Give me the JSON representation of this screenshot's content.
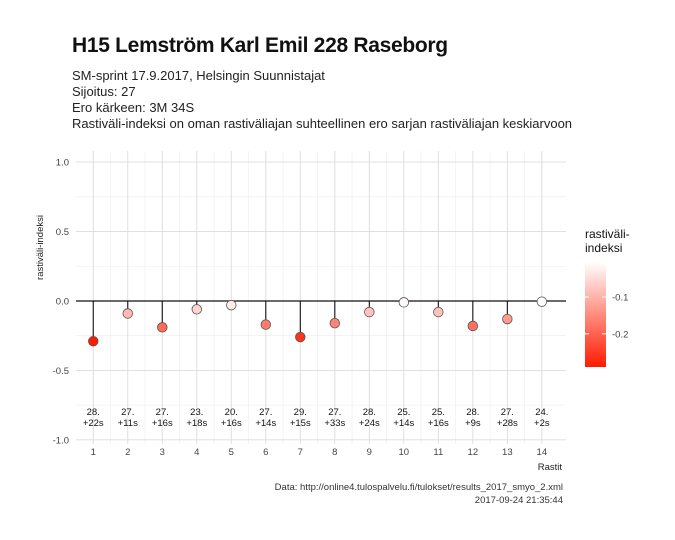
{
  "title": "H15 Lemström Karl Emil 228 Raseborg",
  "subtitle_lines": [
    "SM-sprint 17.9.2017, Helsingin Suunnistajat",
    "Sijoitus: 27",
    "Ero kärkeen: 3M 34S",
    "Rastiväli-indeksi on oman rastiväliajan suhteellinen ero sarjan rastiväliajan keskiarvoon"
  ],
  "caption": {
    "source": "Data: http://online4.tulospalvelu.fi/tulokset/results_2017_smyo_2.xml",
    "timestamp": "2017-09-24 21:35:44"
  },
  "chart_data": {
    "type": "scatter",
    "style": "lollipop",
    "xlabel": "Rastit",
    "ylabel": "rastiväli-indeksi",
    "x": [
      1,
      2,
      3,
      4,
      5,
      6,
      7,
      8,
      9,
      10,
      11,
      12,
      13,
      14
    ],
    "values": [
      -0.29,
      -0.09,
      -0.19,
      -0.06,
      -0.03,
      -0.17,
      -0.26,
      -0.16,
      -0.08,
      -0.01,
      -0.08,
      -0.18,
      -0.13,
      -0.005
    ],
    "point_labels": [
      [
        "28.",
        "+22s"
      ],
      [
        "27.",
        "+11s"
      ],
      [
        "27.",
        "+16s"
      ],
      [
        "23.",
        "+18s"
      ],
      [
        "20.",
        "+16s"
      ],
      [
        "27.",
        "+14s"
      ],
      [
        "29.",
        "+15s"
      ],
      [
        "27.",
        "+33s"
      ],
      [
        "28.",
        "+24s"
      ],
      [
        "25.",
        "+14s"
      ],
      [
        "25.",
        "+16s"
      ],
      [
        "28.",
        "+9s"
      ],
      [
        "27.",
        "+28s"
      ],
      [
        "24.",
        "+2s"
      ]
    ],
    "xlim": [
      0.5,
      14.7
    ],
    "ylim": [
      -1.03,
      1.08
    ],
    "yticks": [
      1.0,
      0.5,
      0.0,
      -0.5,
      -1.0
    ],
    "ytick_labels": [
      "1.0",
      "0.5",
      "0.0",
      "-0.5",
      "-1.0"
    ],
    "grid": true,
    "legend": {
      "title": "rastiväli-\nindeksi",
      "ticks": [
        -0.1,
        -0.2
      ],
      "tick_labels": [
        "-0.1",
        "-0.2"
      ],
      "placement": "right",
      "color_low": "#ff1a00",
      "color_high": "#ffffff",
      "range": [
        -0.29,
        -0.005
      ]
    }
  }
}
